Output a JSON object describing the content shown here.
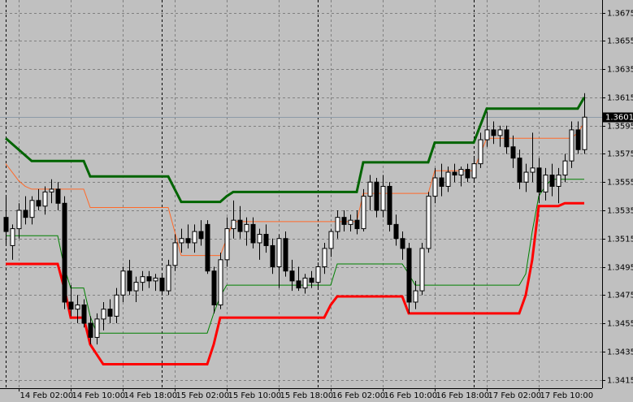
{
  "chart_data": {
    "type": "candlestick",
    "categories": [
      null,
      null,
      "14 Feb 02:00",
      null,
      null,
      null,
      null,
      null,
      null,
      null,
      "14 Feb 10:00",
      null,
      null,
      null,
      null,
      null,
      null,
      null,
      "14 Feb 18:00",
      null,
      null,
      null,
      null,
      null,
      null,
      null,
      "15 Feb 02:00",
      null,
      null,
      null,
      null,
      null,
      null,
      null,
      "15 Feb 10:00",
      null,
      null,
      null,
      null,
      null,
      null,
      null,
      "15 Feb 18:00",
      null,
      null,
      null,
      null,
      null,
      null,
      null,
      "16 Feb 02:00",
      null,
      null,
      null,
      null,
      null,
      null,
      null,
      "16 Feb 10:00",
      null,
      null,
      null,
      null,
      null,
      null,
      null,
      "16 Feb 18:00",
      null,
      null,
      null,
      null,
      null,
      null,
      null,
      "17 Feb 02:00",
      null,
      null,
      null,
      null,
      null,
      null,
      null,
      "17 Feb 10:00",
      null,
      null,
      null,
      null,
      null,
      null,
      null
    ],
    "candles": [
      [
        1.353,
        1.3545,
        1.351,
        1.352
      ],
      [
        1.351,
        1.3525,
        1.35,
        1.3522
      ],
      [
        1.3522,
        1.354,
        1.3515,
        1.3535
      ],
      [
        1.3535,
        1.3545,
        1.3525,
        1.353
      ],
      [
        1.353,
        1.3545,
        1.3525,
        1.3542
      ],
      [
        1.3542,
        1.355,
        1.3535,
        1.3538
      ],
      [
        1.3538,
        1.3552,
        1.3532,
        1.3548
      ],
      [
        1.3548,
        1.3557,
        1.354,
        1.355
      ],
      [
        1.355,
        1.3555,
        1.3535,
        1.354
      ],
      [
        1.354,
        1.3545,
        1.3465,
        1.347
      ],
      [
        1.347,
        1.3482,
        1.346,
        1.3465
      ],
      [
        1.3465,
        1.3475,
        1.3455,
        1.3468
      ],
      [
        1.3468,
        1.3472,
        1.3452,
        1.3455
      ],
      [
        1.3455,
        1.346,
        1.344,
        1.3445
      ],
      [
        1.3445,
        1.3462,
        1.344,
        1.3458
      ],
      [
        1.3458,
        1.347,
        1.345,
        1.3465
      ],
      [
        1.3465,
        1.3472,
        1.3455,
        1.346
      ],
      [
        1.346,
        1.348,
        1.3455,
        1.3475
      ],
      [
        1.3475,
        1.3495,
        1.347,
        1.3492
      ],
      [
        1.3492,
        1.35,
        1.3475,
        1.3478
      ],
      [
        1.3478,
        1.3488,
        1.347,
        1.3484
      ],
      [
        1.3484,
        1.3492,
        1.3478,
        1.3488
      ],
      [
        1.3488,
        1.3492,
        1.348,
        1.3485
      ],
      [
        1.3485,
        1.349,
        1.3478,
        1.3487
      ],
      [
        1.3487,
        1.349,
        1.3475,
        1.3478
      ],
      [
        1.3478,
        1.35,
        1.3475,
        1.3496
      ],
      [
        1.3496,
        1.3518,
        1.3492,
        1.3512
      ],
      [
        1.3512,
        1.3522,
        1.3505,
        1.3515
      ],
      [
        1.3515,
        1.3525,
        1.3508,
        1.3512
      ],
      [
        1.3512,
        1.3525,
        1.3505,
        1.352
      ],
      [
        1.352,
        1.3528,
        1.351,
        1.3515
      ],
      [
        1.3525,
        1.3528,
        1.349,
        1.3492
      ],
      [
        1.3492,
        1.3495,
        1.3462,
        1.3468
      ],
      [
        1.3468,
        1.3505,
        1.3465,
        1.35
      ],
      [
        1.35,
        1.353,
        1.3495,
        1.3522
      ],
      [
        1.3522,
        1.3542,
        1.3515,
        1.3528
      ],
      [
        1.3528,
        1.3538,
        1.3515,
        1.352
      ],
      [
        1.352,
        1.353,
        1.351,
        1.3525
      ],
      [
        1.3525,
        1.353,
        1.3508,
        1.3512
      ],
      [
        1.3512,
        1.3522,
        1.35,
        1.3518
      ],
      [
        1.3518,
        1.3525,
        1.3505,
        1.351
      ],
      [
        1.351,
        1.3515,
        1.349,
        1.3495
      ],
      [
        1.3495,
        1.3518,
        1.348,
        1.3515
      ],
      [
        1.3515,
        1.352,
        1.3488,
        1.3492
      ],
      [
        1.3492,
        1.35,
        1.3478,
        1.3485
      ],
      [
        1.3485,
        1.3495,
        1.3478,
        1.348
      ],
      [
        1.348,
        1.349,
        1.3476,
        1.3487
      ],
      [
        1.3487,
        1.3492,
        1.348,
        1.3484
      ],
      [
        1.3484,
        1.3498,
        1.348,
        1.3495
      ],
      [
        1.3495,
        1.3512,
        1.349,
        1.3508
      ],
      [
        1.3508,
        1.3522,
        1.3502,
        1.352
      ],
      [
        1.352,
        1.3535,
        1.3515,
        1.353
      ],
      [
        1.353,
        1.3535,
        1.352,
        1.3525
      ],
      [
        1.3525,
        1.3532,
        1.352,
        1.3528
      ],
      [
        1.3528,
        1.3535,
        1.3518,
        1.3522
      ],
      [
        1.3522,
        1.355,
        1.352,
        1.3545
      ],
      [
        1.3545,
        1.356,
        1.3535,
        1.3555
      ],
      [
        1.3555,
        1.3558,
        1.353,
        1.3535
      ],
      [
        1.3535,
        1.356,
        1.353,
        1.3552
      ],
      [
        1.3552,
        1.3555,
        1.352,
        1.3525
      ],
      [
        1.3525,
        1.3532,
        1.351,
        1.3515
      ],
      [
        1.3515,
        1.352,
        1.35,
        1.3508
      ],
      [
        1.3508,
        1.3512,
        1.3462,
        1.347
      ],
      [
        1.347,
        1.3485,
        1.3465,
        1.3478
      ],
      [
        1.3478,
        1.3512,
        1.3475,
        1.3508
      ],
      [
        1.3508,
        1.3548,
        1.3505,
        1.3545
      ],
      [
        1.3545,
        1.3565,
        1.354,
        1.3558
      ],
      [
        1.3558,
        1.3568,
        1.3545,
        1.3552
      ],
      [
        1.3552,
        1.3566,
        1.3548,
        1.3562
      ],
      [
        1.3562,
        1.3568,
        1.3555,
        1.356
      ],
      [
        1.356,
        1.3566,
        1.3552,
        1.3564
      ],
      [
        1.3564,
        1.3568,
        1.3555,
        1.3558
      ],
      [
        1.3558,
        1.3572,
        1.3555,
        1.3568
      ],
      [
        1.3568,
        1.359,
        1.3565,
        1.3585
      ],
      [
        1.3585,
        1.3605,
        1.358,
        1.3592
      ],
      [
        1.3592,
        1.3598,
        1.3582,
        1.3588
      ],
      [
        1.3588,
        1.3595,
        1.358,
        1.3592
      ],
      [
        1.3592,
        1.3595,
        1.3575,
        1.358
      ],
      [
        1.358,
        1.3588,
        1.3565,
        1.3572
      ],
      [
        1.3572,
        1.3578,
        1.355,
        1.3555
      ],
      [
        1.3555,
        1.3568,
        1.3548,
        1.3562
      ],
      [
        1.3562,
        1.359,
        1.3555,
        1.3565
      ],
      [
        1.3565,
        1.3572,
        1.354,
        1.3548
      ],
      [
        1.3548,
        1.3565,
        1.3542,
        1.356
      ],
      [
        1.356,
        1.3568,
        1.3545,
        1.3552
      ],
      [
        1.3552,
        1.3565,
        1.354,
        1.356
      ],
      [
        1.356,
        1.3575,
        1.3555,
        1.357
      ],
      [
        1.357,
        1.3598,
        1.3565,
        1.3592
      ],
      [
        1.3592,
        1.3598,
        1.3575,
        1.3578
      ],
      [
        1.3578,
        1.3618,
        1.3575,
        1.3601
      ]
    ],
    "up_color": "#ffffff",
    "down_color": "#000000",
    "lines": [
      {
        "color": "#006400",
        "width": 3,
        "values": [
          1.3586,
          1.3582,
          1.3578,
          1.3574,
          1.357,
          1.357,
          1.357,
          1.357,
          1.357,
          1.357,
          1.357,
          1.357,
          1.357,
          1.3559,
          1.3559,
          1.3559,
          1.3559,
          1.3559,
          1.3559,
          1.3559,
          1.3559,
          1.3559,
          1.3559,
          1.3559,
          1.3559,
          1.3559,
          1.355,
          1.3541,
          1.3541,
          1.3541,
          1.3541,
          1.3541,
          1.3541,
          1.3541,
          1.3545,
          1.3548,
          1.3548,
          1.3548,
          1.3548,
          1.3548,
          1.3548,
          1.3548,
          1.3548,
          1.3548,
          1.3548,
          1.3548,
          1.3548,
          1.3548,
          1.3548,
          1.3548,
          1.3548,
          1.3548,
          1.3548,
          1.3548,
          1.3548,
          1.3569,
          1.3569,
          1.3569,
          1.3569,
          1.3569,
          1.3569,
          1.3569,
          1.3569,
          1.3569,
          1.3569,
          1.3569,
          1.3583,
          1.3583,
          1.3583,
          1.3583,
          1.3583,
          1.3583,
          1.3583,
          1.3595,
          1.3607,
          1.3607,
          1.3607,
          1.3607,
          1.3607,
          1.3607,
          1.3607,
          1.3607,
          1.3607,
          1.3607,
          1.3607,
          1.3607,
          1.3607,
          1.3607,
          1.3607,
          1.3615
        ]
      },
      {
        "color": "#ff0000",
        "width": 3,
        "values": [
          1.3497,
          1.3497,
          1.3497,
          1.3497,
          1.3497,
          1.3497,
          1.3497,
          1.3497,
          1.3497,
          1.348,
          1.3459,
          1.3459,
          1.3459,
          1.344,
          1.3433,
          1.3426,
          1.3426,
          1.3426,
          1.3426,
          1.3426,
          1.3426,
          1.3426,
          1.3426,
          1.3426,
          1.3426,
          1.3426,
          1.3426,
          1.3426,
          1.3426,
          1.3426,
          1.3426,
          1.3426,
          1.344,
          1.3459,
          1.3459,
          1.3459,
          1.3459,
          1.3459,
          1.3459,
          1.3459,
          1.3459,
          1.3459,
          1.3459,
          1.3459,
          1.3459,
          1.3459,
          1.3459,
          1.3459,
          1.3459,
          1.3459,
          1.3468,
          1.3474,
          1.3474,
          1.3474,
          1.3474,
          1.3474,
          1.3474,
          1.3474,
          1.3474,
          1.3474,
          1.3474,
          1.3474,
          1.3462,
          1.3462,
          1.3462,
          1.3462,
          1.3462,
          1.3462,
          1.3462,
          1.3462,
          1.3462,
          1.3462,
          1.3462,
          1.3462,
          1.3462,
          1.3462,
          1.3462,
          1.3462,
          1.3462,
          1.3462,
          1.3475,
          1.35,
          1.3538,
          1.3538,
          1.3538,
          1.3538,
          1.354,
          1.354,
          1.354,
          1.354
        ]
      },
      {
        "color": "#ff6a2a",
        "width": 1,
        "values": [
          1.3568,
          1.3562,
          1.3556,
          1.3552,
          1.355,
          1.355,
          1.355,
          1.355,
          1.355,
          1.355,
          1.355,
          1.355,
          1.355,
          1.3537,
          1.3537,
          1.3537,
          1.3537,
          1.3537,
          1.3537,
          1.3537,
          1.3537,
          1.3537,
          1.3537,
          1.3537,
          1.3537,
          1.3537,
          1.352,
          1.3503,
          1.3503,
          1.3503,
          1.3503,
          1.3503,
          1.3503,
          1.3503,
          1.3515,
          1.3527,
          1.3527,
          1.3527,
          1.3527,
          1.3527,
          1.3527,
          1.3527,
          1.3527,
          1.3527,
          1.3527,
          1.3527,
          1.3527,
          1.3527,
          1.3527,
          1.3527,
          1.3527,
          1.3527,
          1.3527,
          1.3527,
          1.3527,
          1.3547,
          1.3547,
          1.3547,
          1.3547,
          1.3547,
          1.3547,
          1.3547,
          1.3547,
          1.3547,
          1.3547,
          1.3547,
          1.3563,
          1.3563,
          1.3563,
          1.3563,
          1.3563,
          1.3563,
          1.3563,
          1.3575,
          1.3586,
          1.3586,
          1.3586,
          1.3586,
          1.3586,
          1.3586,
          1.3586,
          1.3586,
          1.3586,
          1.3586,
          1.3586,
          1.3586,
          1.3586,
          1.3586,
          1.359,
          1.3597
        ]
      },
      {
        "color": "#008000",
        "width": 1,
        "values": [
          1.3517,
          1.3517,
          1.3517,
          1.3517,
          1.3517,
          1.3517,
          1.3517,
          1.3517,
          1.3517,
          1.3495,
          1.348,
          1.348,
          1.348,
          1.346,
          1.3448,
          1.3448,
          1.3448,
          1.3448,
          1.3448,
          1.3448,
          1.3448,
          1.3448,
          1.3448,
          1.3448,
          1.3448,
          1.3448,
          1.3448,
          1.3448,
          1.3448,
          1.3448,
          1.3448,
          1.3448,
          1.3462,
          1.3474,
          1.3482,
          1.3482,
          1.3482,
          1.3482,
          1.3482,
          1.3482,
          1.3482,
          1.3482,
          1.3482,
          1.3482,
          1.3482,
          1.3482,
          1.3482,
          1.3482,
          1.3482,
          1.3482,
          1.3482,
          1.3497,
          1.3497,
          1.3497,
          1.3497,
          1.3497,
          1.3497,
          1.3497,
          1.3497,
          1.3497,
          1.3497,
          1.3497,
          1.349,
          1.3482,
          1.3482,
          1.3482,
          1.3482,
          1.3482,
          1.3482,
          1.3482,
          1.3482,
          1.3482,
          1.3482,
          1.3482,
          1.3482,
          1.3482,
          1.3482,
          1.3482,
          1.3482,
          1.3482,
          1.349,
          1.352,
          1.3545,
          1.3552,
          1.3557,
          1.3557,
          1.3557,
          1.3557,
          1.3557,
          1.3557
        ]
      }
    ],
    "current_price": 1.3601,
    "ylim": [
      1.3409,
      1.3684
    ],
    "yticks": [
      1.3675,
      1.3655,
      1.3635,
      1.3615,
      1.3595,
      1.3575,
      1.3555,
      1.3535,
      1.3515,
      1.3495,
      1.3475,
      1.3455,
      1.3435,
      1.3415
    ],
    "grid": true
  }
}
